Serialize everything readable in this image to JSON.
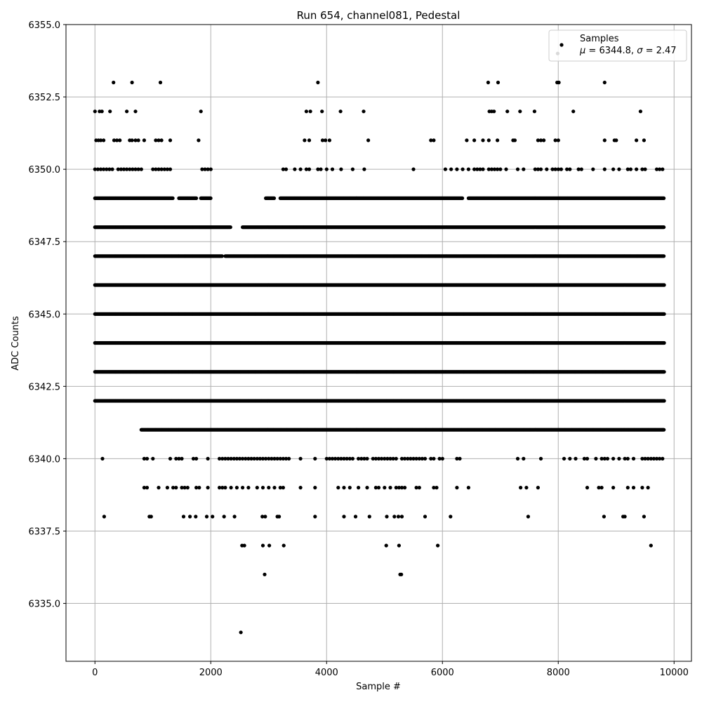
{
  "chart_data": {
    "type": "scatter",
    "title": "Run 654, channel081, Pedestal",
    "xlabel": "Sample #",
    "ylabel": "ADC Counts",
    "xlim": [
      -500,
      10300
    ],
    "ylim": [
      6333,
      6355
    ],
    "x_ticks": [
      0,
      2000,
      4000,
      6000,
      8000,
      10000
    ],
    "y_ticks": [
      6335.0,
      6337.5,
      6340.0,
      6342.5,
      6345.0,
      6347.5,
      6350.0,
      6352.5,
      6355.0
    ],
    "x_tick_labels": [
      "0",
      "2000",
      "4000",
      "6000",
      "8000",
      "10000"
    ],
    "y_tick_labels": [
      "6335.0",
      "6337.5",
      "6340.0",
      "6342.5",
      "6345.0",
      "6347.5",
      "6350.0",
      "6352.5",
      "6355.0"
    ],
    "grid": true,
    "legend": {
      "placement": "top-right",
      "series_name": "Samples",
      "stats_line_mu": "μ",
      "stats_line_rest": " = 6344.8, ",
      "stats_line_sigma": "σ",
      "stats_line_end": " = 2.47"
    },
    "series_color": "#000000",
    "n_samples": 9830,
    "levels": [
      {
        "y": 6349,
        "segments": [
          [
            0,
            1350
          ],
          [
            1450,
            1750
          ],
          [
            1830,
            2000
          ],
          [
            2950,
            3100
          ],
          [
            3200,
            6350
          ],
          [
            6450,
            9830
          ]
        ]
      },
      {
        "y": 6348,
        "segments": [
          [
            0,
            2350
          ],
          [
            2550,
            9830
          ]
        ]
      },
      {
        "y": 6347,
        "segments": [
          [
            0,
            2200
          ],
          [
            2250,
            9830
          ]
        ]
      },
      {
        "y": 6346,
        "segments": [
          [
            0,
            9830
          ]
        ]
      },
      {
        "y": 6345,
        "segments": [
          [
            0,
            9830
          ]
        ]
      },
      {
        "y": 6344,
        "segments": [
          [
            0,
            9830
          ]
        ]
      },
      {
        "y": 6343,
        "segments": [
          [
            0,
            9830
          ]
        ]
      },
      {
        "y": 6342,
        "segments": [
          [
            0,
            9830
          ]
        ]
      },
      {
        "y": 6341,
        "segments": [
          [
            800,
            9830
          ]
        ]
      }
    ],
    "sparse_points": [
      {
        "y": 6354,
        "x": [
          7990
        ]
      },
      {
        "y": 6353,
        "x": [
          320,
          640,
          1130,
          3850,
          6790,
          6960,
          7980,
          8010,
          8800
        ]
      },
      {
        "y": 6352,
        "x": [
          0,
          80,
          120,
          260,
          550,
          700,
          1830,
          3650,
          3720,
          3920,
          4240,
          4640,
          6810,
          6850,
          6890,
          7120,
          7340,
          7590,
          8260,
          9420
        ]
      },
      {
        "y": 6351,
        "x": [
          20,
          60,
          100,
          150,
          330,
          380,
          430,
          600,
          640,
          700,
          750,
          850,
          1050,
          1100,
          1150,
          1300,
          1790,
          3620,
          3700,
          3930,
          3980,
          4050,
          4720,
          5800,
          5850,
          6420,
          6550,
          6700,
          6800,
          6950,
          7220,
          7250,
          7650,
          7700,
          7750,
          7950,
          8000,
          8800,
          8970,
          9000,
          9350,
          9480
        ]
      },
      {
        "y": 6350,
        "x": [
          0,
          50,
          100,
          150,
          200,
          250,
          300,
          400,
          450,
          500,
          550,
          600,
          650,
          700,
          750,
          800,
          1000,
          1050,
          1100,
          1150,
          1200,
          1250,
          1300,
          1850,
          1900,
          1950,
          2000,
          3250,
          3300,
          3450,
          3550,
          3650,
          3700,
          3850,
          3900,
          4000,
          4100,
          4250,
          4450,
          4650,
          5500,
          6050,
          6150,
          6250,
          6350,
          6450,
          6550,
          6600,
          6650,
          6700,
          6800,
          6850,
          6900,
          6950,
          7000,
          7100,
          7300,
          7400,
          7600,
          7650,
          7700,
          7800,
          7900,
          7950,
          8000,
          8050,
          8150,
          8200,
          8350,
          8400,
          8600,
          8800,
          8950,
          9050,
          9200,
          9250,
          9350,
          9450,
          9500,
          9700,
          9750,
          9800
        ]
      },
      {
        "y": 6340,
        "x": [
          130,
          850,
          900,
          1000,
          1300,
          1400,
          1450,
          1500,
          1700,
          1750,
          1950,
          2150,
          2200,
          2250,
          2300,
          2350,
          2400,
          2450,
          2500,
          2550,
          2600,
          2650,
          2700,
          2750,
          2800,
          2850,
          2900,
          2950,
          3000,
          3050,
          3100,
          3150,
          3200,
          3250,
          3300,
          3350,
          3550,
          3800,
          4000,
          4050,
          4100,
          4150,
          4200,
          4250,
          4300,
          4350,
          4400,
          4450,
          4550,
          4600,
          4650,
          4700,
          4800,
          4850,
          4900,
          4950,
          5000,
          5050,
          5100,
          5150,
          5200,
          5300,
          5350,
          5400,
          5450,
          5500,
          5550,
          5600,
          5650,
          5700,
          5800,
          5850,
          5950,
          6000,
          6250,
          6300,
          7300,
          7400,
          7700,
          8100,
          8200,
          8300,
          8450,
          8500,
          8650,
          8750,
          8800,
          8850,
          8950,
          9050,
          9150,
          9200,
          9300,
          9450,
          9500,
          9550,
          9600,
          9650,
          9700,
          9750,
          9800
        ]
      },
      {
        "y": 6339,
        "x": [
          850,
          900,
          1100,
          1250,
          1350,
          1400,
          1500,
          1550,
          1600,
          1750,
          1800,
          1950,
          2150,
          2200,
          2250,
          2350,
          2450,
          2550,
          2650,
          2800,
          2900,
          3000,
          3100,
          3200,
          3250,
          3550,
          3800,
          4200,
          4300,
          4400,
          4550,
          4700,
          4850,
          4900,
          5000,
          5100,
          5200,
          5250,
          5300,
          5350,
          5550,
          5600,
          5850,
          5900,
          6250,
          6450,
          7350,
          7450,
          7650,
          8500,
          8700,
          8750,
          8950,
          9200,
          9300,
          9450,
          9550
        ]
      },
      {
        "y": 6338,
        "x": [
          160,
          940,
          970,
          1530,
          1640,
          1740,
          1930,
          2030,
          2230,
          2410,
          2890,
          2940,
          3150,
          3180,
          3800,
          4300,
          4500,
          4740,
          5040,
          5170,
          5240,
          5300,
          5700,
          6140,
          7480,
          8790,
          9120,
          9150,
          9480
        ]
      },
      {
        "y": 6337,
        "x": [
          2540,
          2580,
          2900,
          3010,
          3260,
          5030,
          5250,
          5920,
          9600
        ]
      },
      {
        "y": 6336,
        "x": [
          2930,
          5270,
          5290
        ]
      },
      {
        "y": 6334,
        "x": [
          2520
        ]
      }
    ],
    "level_density_per_point": 12
  }
}
